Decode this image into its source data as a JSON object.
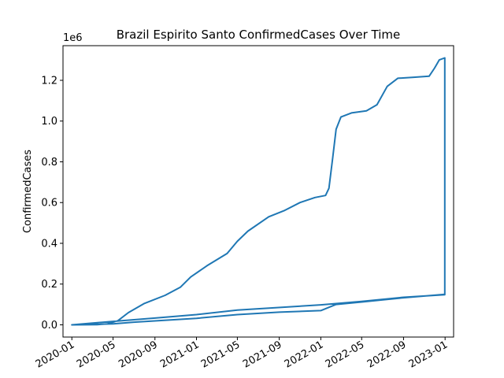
{
  "chart_data": {
    "type": "line",
    "title": "Brazil Espirito Santo ConfirmedCases Over Time",
    "xlabel": "",
    "ylabel": "ConfirmedCases",
    "y_offset_text": "1e6",
    "x_tick_labels": [
      "2020-01",
      "2020-05",
      "2020-09",
      "2021-01",
      "2021-05",
      "2021-09",
      "2022-01",
      "2022-05",
      "2022-09",
      "2023-01"
    ],
    "y_tick_labels": [
      "0.0",
      "0.2",
      "0.4",
      "0.6",
      "0.8",
      "1.0",
      "1.2"
    ],
    "y_tick_values": [
      0,
      200000,
      400000,
      600000,
      800000,
      1000000,
      1200000
    ],
    "xlim": [
      "2019-12-06",
      "2023-01-26"
    ],
    "ylim": [
      -60000,
      1370000
    ],
    "grid": false,
    "legend": "none",
    "line_color": "#1f77b4",
    "series": [
      {
        "values": [
          [
            "2020-01-01",
            0
          ],
          [
            "2020-03-15",
            1000
          ],
          [
            "2020-04-15",
            5000
          ],
          [
            "2020-05-15",
            20000
          ],
          [
            "2020-06-15",
            60000
          ],
          [
            "2020-08-01",
            105000
          ],
          [
            "2020-10-01",
            145000
          ],
          [
            "2020-11-15",
            185000
          ],
          [
            "2020-12-15",
            235000
          ],
          [
            "2021-02-01",
            290000
          ],
          [
            "2021-04-01",
            350000
          ],
          [
            "2021-05-01",
            410000
          ],
          [
            "2021-06-01",
            460000
          ],
          [
            "2021-08-01",
            530000
          ],
          [
            "2021-09-15",
            560000
          ],
          [
            "2021-11-01",
            600000
          ],
          [
            "2021-12-15",
            625000
          ],
          [
            "2022-01-15",
            635000
          ],
          [
            "2022-01-25",
            670000
          ],
          [
            "2022-02-05",
            820000
          ],
          [
            "2022-02-15",
            960000
          ],
          [
            "2022-03-01",
            1020000
          ],
          [
            "2022-04-01",
            1040000
          ],
          [
            "2022-05-15",
            1050000
          ],
          [
            "2022-06-15",
            1080000
          ],
          [
            "2022-07-15",
            1170000
          ],
          [
            "2022-08-15",
            1210000
          ],
          [
            "2022-10-01",
            1215000
          ],
          [
            "2022-11-15",
            1220000
          ],
          [
            "2022-12-01",
            1260000
          ],
          [
            "2022-12-15",
            1300000
          ],
          [
            "2022-12-31",
            1310000
          ],
          [
            "2022-12-31",
            148000
          ],
          [
            "2022-09-01",
            135000
          ],
          [
            "2022-05-01",
            115000
          ],
          [
            "2022-01-01",
            98000
          ],
          [
            "2021-05-01",
            72000
          ],
          [
            "2021-01-01",
            50000
          ],
          [
            "2020-09-01",
            33000
          ],
          [
            "2020-05-01",
            17000
          ],
          [
            "2020-01-01",
            0
          ],
          [
            "2020-05-01",
            5000
          ],
          [
            "2020-07-01",
            13000
          ],
          [
            "2021-01-01",
            32000
          ],
          [
            "2021-05-01",
            50000
          ],
          [
            "2021-09-01",
            62000
          ],
          [
            "2022-01-01",
            70000
          ],
          [
            "2022-02-15",
            100000
          ],
          [
            "2022-05-01",
            112000
          ],
          [
            "2022-09-01",
            133000
          ],
          [
            "2022-12-31",
            150000
          ]
        ]
      }
    ]
  }
}
